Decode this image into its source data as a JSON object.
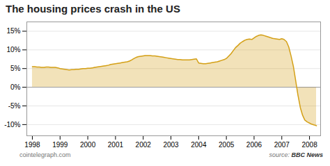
{
  "chart_data": {
    "type": "area",
    "title": "The housing prices crash in the US",
    "annotations": [
      "cointelegraph.com",
      "source:",
      "BBC News"
    ],
    "color": "#d4a017",
    "grid": true,
    "xlim": [
      1997.8,
      2008.4
    ],
    "xticks": [
      1998,
      1999,
      2000,
      2001,
      2002,
      2003,
      2004,
      2005,
      2006,
      2007,
      2008
    ],
    "ylim": [
      -0.13,
      0.175
    ],
    "yticks": [
      {
        "value": -0.1,
        "label": "-10%"
      },
      {
        "value": -0.05,
        "label": "-5%"
      },
      {
        "value": 0.0,
        "label": "0%"
      },
      {
        "value": 0.05,
        "label": "5%"
      },
      {
        "value": 0.1,
        "label": "10%"
      },
      {
        "value": 0.15,
        "label": "15%"
      }
    ],
    "x": [
      1998.0,
      1998.08,
      1998.17,
      1998.25,
      1998.33,
      1998.42,
      1998.5,
      1998.58,
      1998.67,
      1998.75,
      1998.83,
      1998.92,
      1999.0,
      1999.08,
      1999.17,
      1999.25,
      1999.33,
      1999.42,
      1999.5,
      1999.58,
      1999.67,
      1999.75,
      1999.83,
      1999.92,
      2000.0,
      2000.08,
      2000.17,
      2000.25,
      2000.33,
      2000.42,
      2000.5,
      2000.58,
      2000.67,
      2000.75,
      2000.83,
      2000.92,
      2001.0,
      2001.08,
      2001.17,
      2001.25,
      2001.33,
      2001.42,
      2001.5,
      2001.58,
      2001.67,
      2001.75,
      2001.83,
      2001.92,
      2002.0,
      2002.08,
      2002.17,
      2002.25,
      2002.33,
      2002.42,
      2002.5,
      2002.58,
      2002.67,
      2002.75,
      2002.83,
      2002.92,
      2003.0,
      2003.08,
      2003.17,
      2003.25,
      2003.33,
      2003.42,
      2003.5,
      2003.58,
      2003.67,
      2003.75,
      2003.83,
      2003.92,
      2004.0,
      2004.08,
      2004.17,
      2004.25,
      2004.33,
      2004.42,
      2004.5,
      2004.58,
      2004.67,
      2004.75,
      2004.83,
      2004.92,
      2005.0,
      2005.08,
      2005.17,
      2005.25,
      2005.33,
      2005.42,
      2005.5,
      2005.58,
      2005.67,
      2005.75,
      2005.83,
      2005.92,
      2006.0,
      2006.08,
      2006.17,
      2006.25,
      2006.33,
      2006.42,
      2006.5,
      2006.58,
      2006.67,
      2006.75,
      2006.83,
      2006.92,
      2007.0,
      2007.08,
      2007.17,
      2007.25,
      2007.33,
      2007.42,
      2007.5,
      2007.58,
      2007.67,
      2007.75,
      2007.83,
      2007.92,
      2008.0,
      2008.08,
      2008.17,
      2008.25
    ],
    "values": [
      0.055,
      0.055,
      0.054,
      0.054,
      0.053,
      0.053,
      0.054,
      0.054,
      0.053,
      0.053,
      0.053,
      0.052,
      0.05,
      0.049,
      0.048,
      0.047,
      0.046,
      0.047,
      0.047,
      0.048,
      0.048,
      0.049,
      0.05,
      0.05,
      0.051,
      0.051,
      0.052,
      0.053,
      0.054,
      0.055,
      0.056,
      0.057,
      0.058,
      0.059,
      0.061,
      0.062,
      0.063,
      0.064,
      0.065,
      0.066,
      0.067,
      0.068,
      0.07,
      0.073,
      0.077,
      0.08,
      0.082,
      0.083,
      0.084,
      0.085,
      0.085,
      0.085,
      0.084,
      0.084,
      0.083,
      0.082,
      0.081,
      0.08,
      0.079,
      0.078,
      0.077,
      0.076,
      0.075,
      0.074,
      0.074,
      0.073,
      0.073,
      0.073,
      0.073,
      0.074,
      0.075,
      0.076,
      0.065,
      0.064,
      0.063,
      0.063,
      0.064,
      0.065,
      0.066,
      0.067,
      0.068,
      0.07,
      0.072,
      0.074,
      0.077,
      0.083,
      0.09,
      0.098,
      0.106,
      0.112,
      0.118,
      0.122,
      0.126,
      0.128,
      0.129,
      0.128,
      0.132,
      0.136,
      0.139,
      0.14,
      0.139,
      0.137,
      0.135,
      0.133,
      0.131,
      0.13,
      0.129,
      0.128,
      0.13,
      0.128,
      0.122,
      0.108,
      0.085,
      0.055,
      0.018,
      -0.02,
      -0.055,
      -0.075,
      -0.088,
      -0.093,
      -0.096,
      -0.099,
      -0.101,
      -0.103
    ]
  }
}
